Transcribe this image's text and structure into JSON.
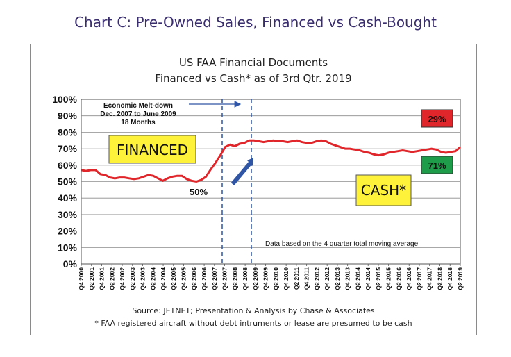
{
  "page": {
    "heading": "Chart C: Pre-Owned Sales, Financed vs Cash-Bought"
  },
  "chart_data": {
    "type": "line",
    "title": "US FAA Financial Documents",
    "subtitle": "Financed vs Cash* as of 3rd Qtr. 2019",
    "ylim": [
      0,
      100
    ],
    "y_ticks": [
      "0%",
      "10%",
      "20%",
      "30%",
      "40%",
      "50%",
      "60%",
      "70%",
      "80%",
      "90%",
      "100%"
    ],
    "x_ticks": [
      "Q4 2000",
      "Q2 2001",
      "Q4 2001",
      "Q2 2002",
      "Q4 2002",
      "Q2 2003",
      "Q4 2003",
      "Q2 2004",
      "Q4 2004",
      "Q2 2005",
      "Q4 2005",
      "Q2 2006",
      "Q4 2006",
      "Q2 2007",
      "Q4 2007",
      "Q2 2008",
      "Q4 2008",
      "Q2 2009",
      "Q4 2009",
      "Q2 2010",
      "Q4 2010",
      "Q2 2011",
      "Q4 2011",
      "Q2 2012",
      "Q4 2012",
      "Q2 2013",
      "Q4 2013",
      "Q2 2014",
      "Q4 2014",
      "Q2 2015",
      "Q4 2015",
      "Q2 2016",
      "Q4 2016",
      "Q2 2017",
      "Q4 2017",
      "Q2 2018",
      "Q4 2018",
      "Q2 2019"
    ],
    "grid": true,
    "series": [
      {
        "name": "Financed share",
        "color": "#e0262a",
        "values": [
          57,
          56.5,
          57,
          57,
          54.5,
          54,
          52.5,
          52,
          52.5,
          52.5,
          52,
          51.5,
          52,
          53,
          54,
          53.5,
          52,
          50.5,
          52,
          53,
          53.5,
          53.5,
          51.5,
          50.5,
          50,
          51,
          53,
          57.5,
          61.5,
          66,
          71,
          72.5,
          71.5,
          73,
          73.5,
          75,
          75,
          74.5,
          74,
          74.5,
          75,
          74.5,
          74.5,
          74,
          74.5,
          75,
          74,
          73.5,
          73.5,
          74.5,
          75,
          74.5,
          73,
          72,
          71,
          70,
          70,
          69.5,
          69,
          68,
          67.5,
          66.5,
          66,
          66.5,
          67.5,
          68,
          68.5,
          69,
          68.5,
          68,
          68.5,
          69,
          69.5,
          70,
          69.5,
          68,
          67.5,
          68,
          68.5,
          71
        ]
      }
    ],
    "annotations": {
      "meltdown_line1": "Economic Melt-down",
      "meltdown_line2": "Dec. 2007 to June 2009",
      "meltdown_line3": "18 Months",
      "financed_label": "FINANCED",
      "cash_label": "CASH*",
      "pct_50": "50%",
      "pct_29": "29%",
      "pct_71": "71%",
      "moving_avg_note": "Data based on the 4 quarter total moving average"
    },
    "colors": {
      "yellow_box": "#fff23a",
      "red_box": "#e0262a",
      "green_box": "#1e9c4a",
      "arrow": "#2f55a4",
      "dashed": "#2f55a4"
    },
    "footnotes": {
      "source": "Source: JETNET; Presentation & Analysis by Chase & Associates",
      "note": "* FAA registered aircraft without debt intruments or lease are presumed to be cash"
    }
  }
}
